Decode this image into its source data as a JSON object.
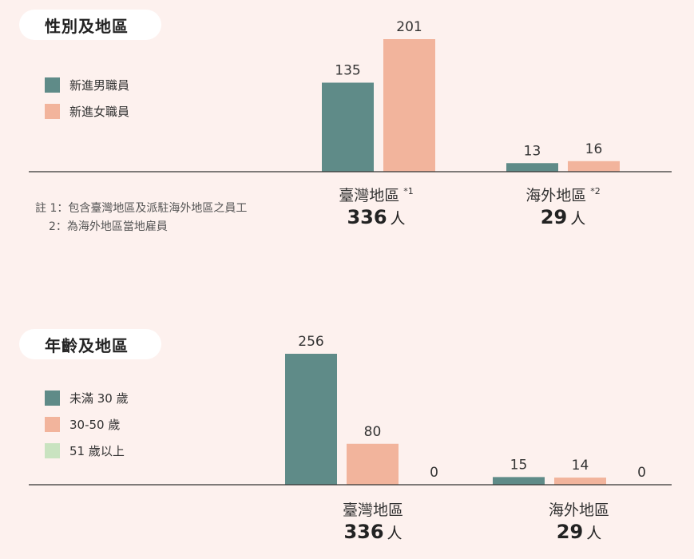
{
  "colors": {
    "male": "#5f8b88",
    "female": "#f2b49c",
    "over50": "#c9e3c0",
    "axis": "#333333"
  },
  "chart_data": [
    {
      "type": "bar",
      "title": "性別及地區",
      "categories": [
        "臺灣地區",
        "海外地區"
      ],
      "category_notes": [
        "*1",
        "*2"
      ],
      "category_totals": [
        "336",
        "29"
      ],
      "unit": "人",
      "series": [
        {
          "name": "新進男職員",
          "values": [
            135,
            13
          ]
        },
        {
          "name": "新進女職員",
          "values": [
            201,
            16
          ]
        }
      ],
      "ylim": [
        0,
        201
      ],
      "grid": false,
      "legend": "top-left",
      "notes": [
        "註 1：包含臺灣地區及派駐海外地區之員工",
        "2：為海外地區當地雇員"
      ]
    },
    {
      "type": "bar",
      "title": "年齡及地區",
      "categories": [
        "臺灣地區",
        "海外地區"
      ],
      "category_totals": [
        "336",
        "29"
      ],
      "unit": "人",
      "series": [
        {
          "name": "未滿 30 歲",
          "values": [
            256,
            15
          ]
        },
        {
          "name": "30-50 歲",
          "values": [
            80,
            14
          ]
        },
        {
          "name": "51 歲以上",
          "values": [
            0,
            0
          ]
        }
      ],
      "ylim": [
        0,
        256
      ],
      "grid": false,
      "legend": "top-left"
    }
  ]
}
